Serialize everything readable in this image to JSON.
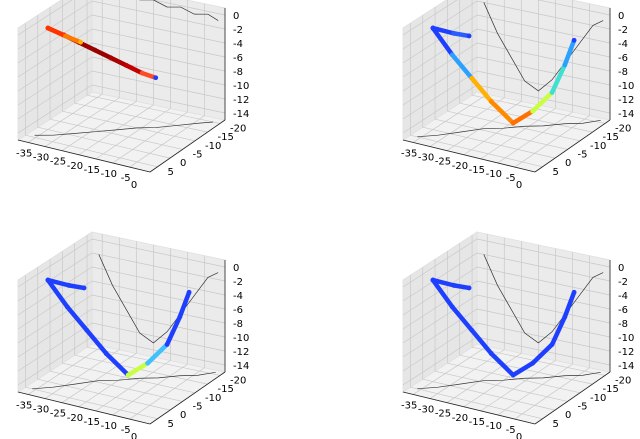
{
  "chart_data": [
    {
      "type": "line",
      "x_ticks": [
        -35,
        -30,
        -25,
        -20,
        -15,
        -10,
        -5
      ],
      "y_ticks": [
        5,
        0,
        -5,
        -10,
        -15,
        -20
      ],
      "z_ticks": [
        0,
        -2,
        -4,
        -6,
        -8,
        -10,
        -12,
        -14
      ],
      "x_extra_tick": "0",
      "xlim": [
        -38,
        1
      ],
      "ylim": [
        -22,
        8
      ],
      "zlim": [
        -15,
        1
      ],
      "trajectory_points": [
        [
          -35,
          0,
          -0.5
        ],
        [
          -30,
          0.5,
          -0.8
        ],
        [
          -25,
          1,
          -1.2
        ],
        [
          -20,
          1.5,
          -1.6
        ],
        [
          -15,
          2,
          -2.0
        ],
        [
          -10,
          2.5,
          -2.4
        ],
        [
          -5,
          3,
          -2.8
        ],
        [
          -1,
          3,
          -3.0
        ]
      ],
      "trajectory_colors": [
        "#ff5a00",
        "#b00000",
        "#9a0000",
        "#9a0000",
        "#aa0000",
        "#c20000",
        "#ff4a2a",
        "#1f3fff"
      ],
      "branch_points": [
        [
          -35,
          0,
          -0.5
        ],
        [
          -32,
          -3,
          -2
        ],
        [
          -29,
          -5,
          -3
        ]
      ],
      "branch_colors": [
        "#ff3300",
        "#ff7a00",
        "#ffb300"
      ],
      "projection_xz": [
        [
          -36,
          -1
        ],
        [
          -32,
          0
        ],
        [
          -28,
          0.4
        ],
        [
          -24,
          -0.4
        ],
        [
          -20,
          0
        ],
        [
          -16,
          -0.6
        ],
        [
          -12,
          -0.2
        ],
        [
          -8,
          -0.8
        ],
        [
          -4,
          -0.4
        ],
        [
          -1,
          -1
        ]
      ],
      "projection_xy": [
        [
          -36,
          4
        ],
        [
          -32,
          2
        ],
        [
          -28,
          -1
        ],
        [
          -24,
          -4
        ],
        [
          -20,
          -7
        ],
        [
          -16,
          -10
        ],
        [
          -12,
          -12
        ],
        [
          -8,
          -15
        ],
        [
          -4,
          -18
        ],
        [
          -1,
          -20
        ]
      ]
    },
    {
      "type": "line",
      "x_ticks": [
        -35,
        -30,
        -25,
        -20,
        -15,
        -10,
        -5
      ],
      "y_ticks": [
        5,
        0,
        -5,
        -10,
        -15,
        -20
      ],
      "z_ticks": [
        0,
        -2,
        -4,
        -6,
        -8,
        -10,
        -12,
        -14
      ],
      "x_extra_tick": "0",
      "xlim": [
        -38,
        1
      ],
      "ylim": [
        -22,
        8
      ],
      "zlim": [
        -15,
        1
      ],
      "trajectory_points": [
        [
          -35,
          0,
          -0.5
        ],
        [
          -30,
          -1,
          -4
        ],
        [
          -25,
          -2,
          -7
        ],
        [
          -20,
          -3,
          -10
        ],
        [
          -15,
          -5,
          -13
        ],
        [
          -10,
          -6,
          -11
        ],
        [
          -5,
          -7,
          -8
        ],
        [
          -2,
          -8,
          -4
        ],
        [
          0,
          -9,
          -0.5
        ]
      ],
      "trajectory_colors": [
        "#1f3fff",
        "#2aa0ff",
        "#ffb000",
        "#ff8a00",
        "#ff7000",
        "#c8ff40",
        "#40e0d0",
        "#2aa0ff",
        "#1f3fff"
      ],
      "branch_points": [
        [
          -35,
          0,
          -0.5
        ],
        [
          -31,
          -3,
          -1.5
        ],
        [
          -28,
          -5,
          -2
        ]
      ],
      "branch_colors": [
        "#1f3fff",
        "#2a5cff",
        "#1f3fff"
      ],
      "projection_xz": [
        [
          -36,
          -2
        ],
        [
          -32,
          -6
        ],
        [
          -28,
          -9
        ],
        [
          -24,
          -12
        ],
        [
          -20,
          -13
        ],
        [
          -16,
          -11
        ],
        [
          -12,
          -8
        ],
        [
          -8,
          -5
        ],
        [
          -4,
          -2
        ],
        [
          -1,
          -1
        ]
      ],
      "projection_xy": [
        [
          -36,
          5
        ],
        [
          -32,
          2
        ],
        [
          -28,
          -2
        ],
        [
          -24,
          -6
        ],
        [
          -20,
          -8
        ],
        [
          -16,
          -11
        ],
        [
          -12,
          -13
        ],
        [
          -8,
          -16
        ],
        [
          -4,
          -18
        ],
        [
          -1,
          -21
        ]
      ]
    },
    {
      "type": "line",
      "x_ticks": [
        -35,
        -30,
        -25,
        -20,
        -15,
        -10,
        -5
      ],
      "y_ticks": [
        5,
        0,
        -5,
        -10,
        -15,
        -20
      ],
      "z_ticks": [
        0,
        -2,
        -4,
        -6,
        -8,
        -10,
        -12,
        -14
      ],
      "x_extra_tick": "0",
      "xlim": [
        -38,
        1
      ],
      "ylim": [
        -22,
        8
      ],
      "zlim": [
        -15,
        1
      ],
      "trajectory_points": [
        [
          -35,
          0,
          -0.5
        ],
        [
          -30,
          -1,
          -4
        ],
        [
          -25,
          -2,
          -7
        ],
        [
          -20,
          -3,
          -10
        ],
        [
          -15,
          -5,
          -13
        ],
        [
          -10,
          -6,
          -11
        ],
        [
          -5,
          -7,
          -8
        ],
        [
          -2,
          -8,
          -4
        ],
        [
          0,
          -9,
          -0.5
        ]
      ],
      "trajectory_colors": [
        "#1f3fff",
        "#1f3fff",
        "#1f3fff",
        "#1f3fff",
        "#c8ff40",
        "#40c0ff",
        "#1f3fff",
        "#1f3fff",
        "#1f3fff"
      ],
      "branch_points": [
        [
          -35,
          0,
          -0.5
        ],
        [
          -31,
          -3,
          -1.5
        ],
        [
          -28,
          -5,
          -2
        ]
      ],
      "branch_colors": [
        "#1f3fff",
        "#1f3fff",
        "#1f3fff"
      ],
      "projection_xz": [
        [
          -36,
          -2
        ],
        [
          -32,
          -6
        ],
        [
          -28,
          -9
        ],
        [
          -24,
          -12
        ],
        [
          -20,
          -13
        ],
        [
          -16,
          -11
        ],
        [
          -12,
          -8
        ],
        [
          -8,
          -5
        ],
        [
          -4,
          -2
        ],
        [
          -1,
          -1
        ]
      ],
      "projection_xy": [
        [
          -36,
          5
        ],
        [
          -32,
          2
        ],
        [
          -28,
          -2
        ],
        [
          -24,
          -6
        ],
        [
          -20,
          -8
        ],
        [
          -16,
          -11
        ],
        [
          -12,
          -13
        ],
        [
          -8,
          -16
        ],
        [
          -4,
          -18
        ],
        [
          -1,
          -21
        ]
      ]
    },
    {
      "type": "line",
      "x_ticks": [
        -35,
        -30,
        -25,
        -20,
        -15,
        -10,
        -5
      ],
      "y_ticks": [
        5,
        0,
        -5,
        -10,
        -15,
        -20
      ],
      "z_ticks": [
        0,
        -2,
        -4,
        -6,
        -8,
        -10,
        -12,
        -14
      ],
      "x_extra_tick": "0",
      "xlim": [
        -38,
        1
      ],
      "ylim": [
        -22,
        8
      ],
      "zlim": [
        -15,
        1
      ],
      "trajectory_points": [
        [
          -35,
          0,
          -0.5
        ],
        [
          -30,
          -1,
          -4
        ],
        [
          -25,
          -2,
          -7
        ],
        [
          -20,
          -3,
          -10
        ],
        [
          -15,
          -5,
          -13
        ],
        [
          -10,
          -6,
          -11
        ],
        [
          -5,
          -7,
          -8
        ],
        [
          -2,
          -8,
          -4
        ],
        [
          0,
          -9,
          -0.5
        ]
      ],
      "trajectory_colors": [
        "#1f3fff",
        "#1f3fff",
        "#1f3fff",
        "#1f3fff",
        "#1f3fff",
        "#1f3fff",
        "#1f3fff",
        "#1f3fff",
        "#1f3fff"
      ],
      "branch_points": [
        [
          -35,
          0,
          -0.5
        ],
        [
          -31,
          -3,
          -1.5
        ],
        [
          -28,
          -5,
          -2
        ]
      ],
      "branch_colors": [
        "#1f3fff",
        "#1f3fff",
        "#1f3fff"
      ],
      "projection_xz": [
        [
          -36,
          -2
        ],
        [
          -32,
          -6
        ],
        [
          -28,
          -9
        ],
        [
          -24,
          -12
        ],
        [
          -20,
          -13
        ],
        [
          -16,
          -11
        ],
        [
          -12,
          -8
        ],
        [
          -8,
          -5
        ],
        [
          -4,
          -2
        ],
        [
          -1,
          -1
        ]
      ],
      "projection_xy": [
        [
          -36,
          5
        ],
        [
          -32,
          2
        ],
        [
          -28,
          -2
        ],
        [
          -24,
          -6
        ],
        [
          -20,
          -8
        ],
        [
          -16,
          -11
        ],
        [
          -12,
          -13
        ],
        [
          -8,
          -16
        ],
        [
          -4,
          -18
        ],
        [
          -1,
          -21
        ]
      ]
    }
  ]
}
